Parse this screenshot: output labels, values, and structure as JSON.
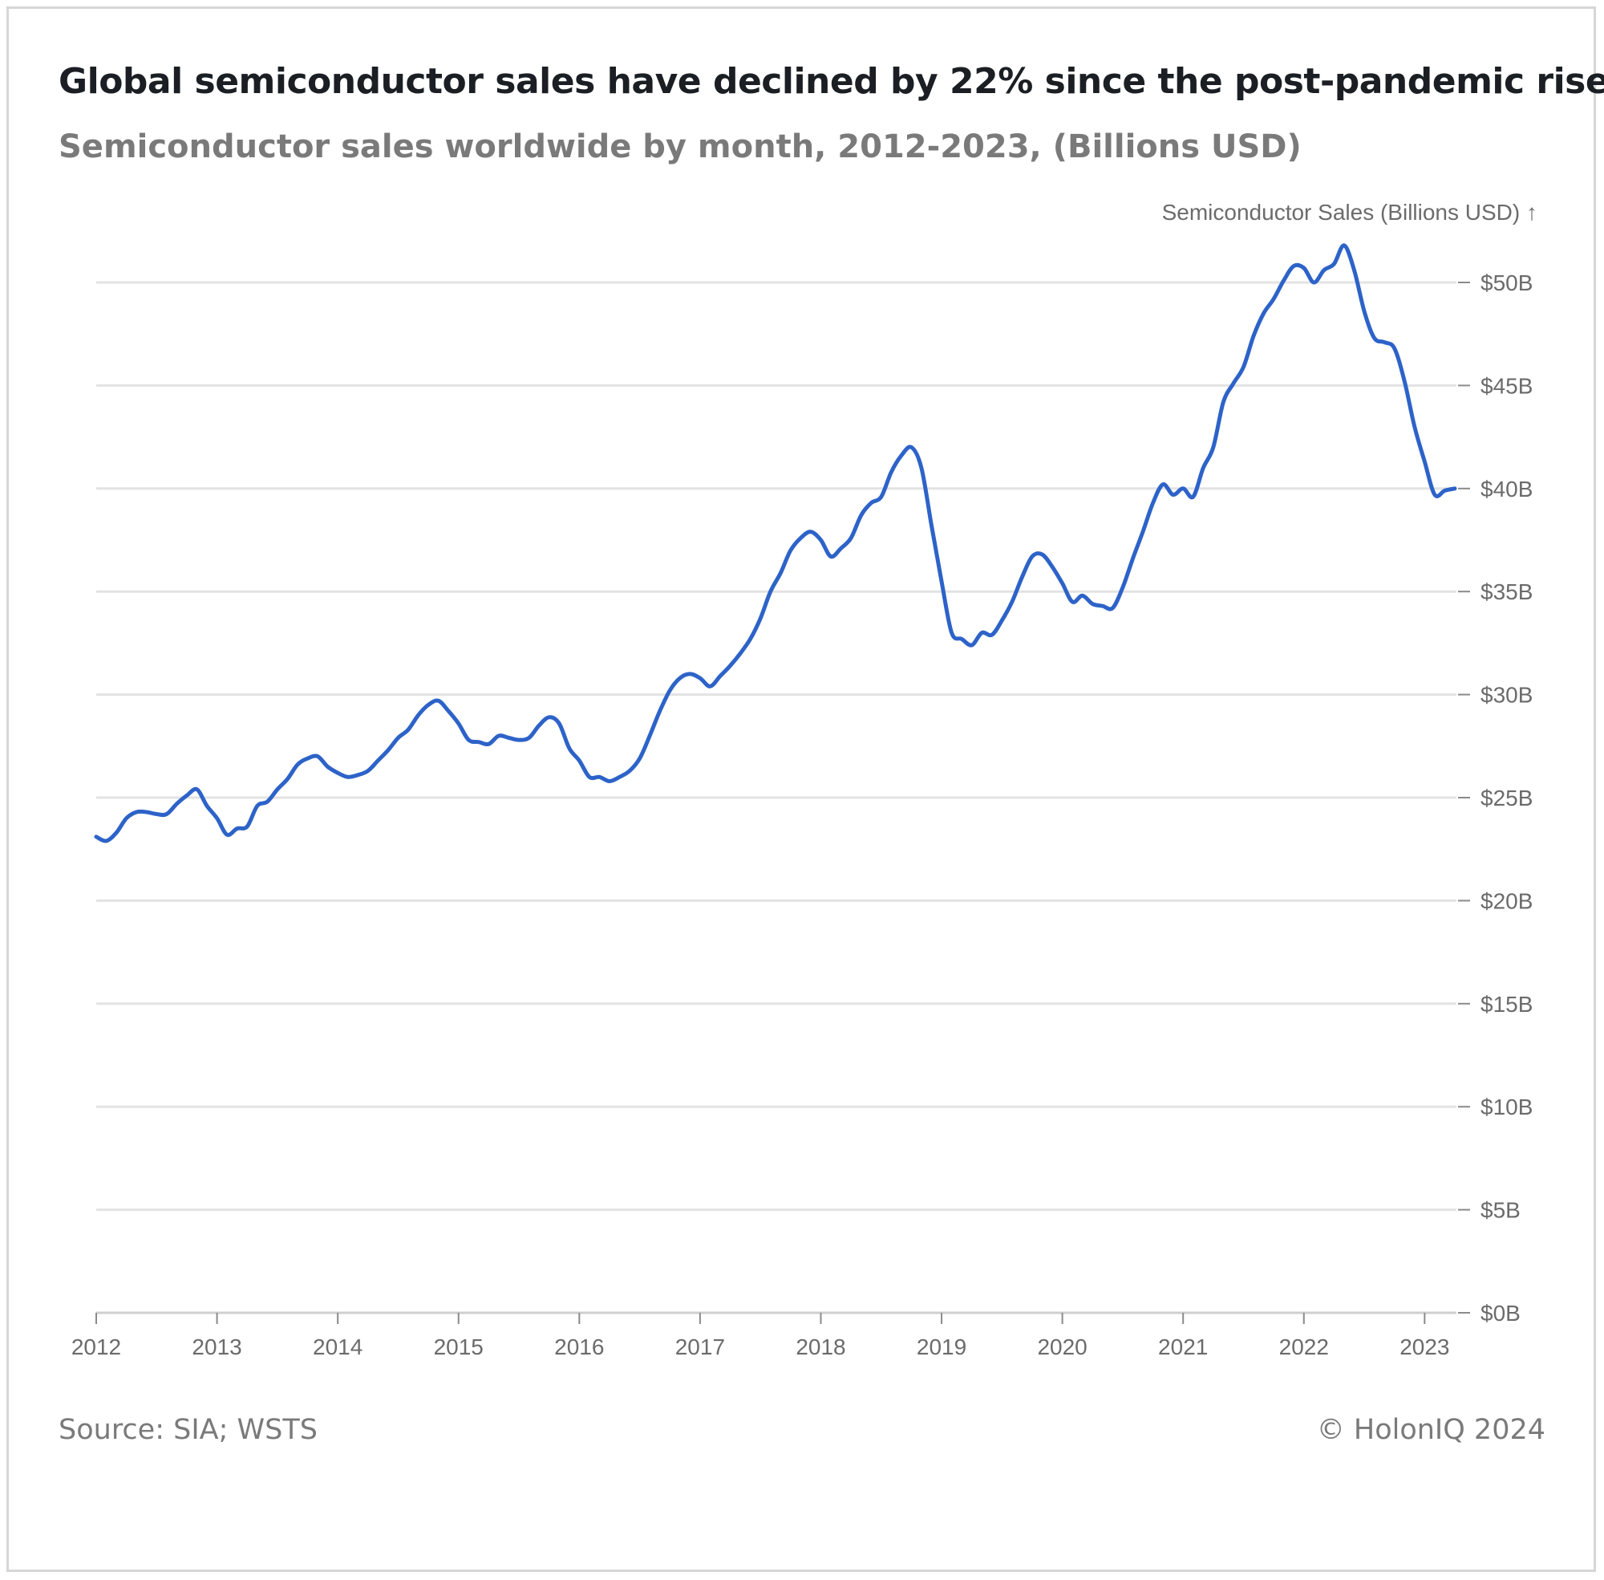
{
  "title": "Global semiconductor sales have declined by 22% since the post-pandemic rise",
  "subtitle": "Semiconductor sales worldwide by month, 2012-2023, (Billions USD)",
  "source": "Source: SIA; WSTS",
  "copyright": "© HolonIQ 2024",
  "colors": {
    "line": "#2d63c8",
    "grid": "#e3e3e3",
    "axis_text": "#6b6b6b"
  },
  "chart_data": {
    "type": "line",
    "title": "Global semiconductor sales have declined by 22% since the post-pandemic rise",
    "subtitle": "Semiconductor sales worldwide by month, 2012-2023, (Billions USD)",
    "ylabel": "Semiconductor Sales (Billions USD) ↑",
    "xlabel": "",
    "ylim": [
      0,
      50
    ],
    "yaxis_position": "right",
    "grid": true,
    "y_ticks": [
      {
        "value": 0,
        "label": "$0B"
      },
      {
        "value": 5,
        "label": "$5B"
      },
      {
        "value": 10,
        "label": "$10B"
      },
      {
        "value": 15,
        "label": "$15B"
      },
      {
        "value": 20,
        "label": "$20B"
      },
      {
        "value": 25,
        "label": "$25B"
      },
      {
        "value": 30,
        "label": "$30B"
      },
      {
        "value": 35,
        "label": "$35B"
      },
      {
        "value": 40,
        "label": "$40B"
      },
      {
        "value": 45,
        "label": "$45B"
      },
      {
        "value": 50,
        "label": "$50B"
      }
    ],
    "x_ticks": [
      "2012",
      "2013",
      "2014",
      "2015",
      "2016",
      "2017",
      "2018",
      "2019",
      "2020",
      "2021",
      "2022",
      "2023"
    ],
    "series": [
      {
        "values_by_month": [
          {
            "x": "2012-01",
            "y": 23.1
          },
          {
            "x": "2012-02",
            "y": 22.9
          },
          {
            "x": "2012-03",
            "y": 23.3
          },
          {
            "x": "2012-04",
            "y": 24.0
          },
          {
            "x": "2012-05",
            "y": 24.3
          },
          {
            "x": "2012-06",
            "y": 24.3
          },
          {
            "x": "2012-07",
            "y": 24.2
          },
          {
            "x": "2012-08",
            "y": 24.2
          },
          {
            "x": "2012-09",
            "y": 24.7
          },
          {
            "x": "2012-10",
            "y": 25.1
          },
          {
            "x": "2012-11",
            "y": 25.4
          },
          {
            "x": "2012-12",
            "y": 24.6
          },
          {
            "x": "2013-01",
            "y": 24.0
          },
          {
            "x": "2013-02",
            "y": 23.2
          },
          {
            "x": "2013-03",
            "y": 23.5
          },
          {
            "x": "2013-04",
            "y": 23.6
          },
          {
            "x": "2013-05",
            "y": 24.6
          },
          {
            "x": "2013-06",
            "y": 24.8
          },
          {
            "x": "2013-07",
            "y": 25.4
          },
          {
            "x": "2013-08",
            "y": 25.9
          },
          {
            "x": "2013-09",
            "y": 26.6
          },
          {
            "x": "2013-10",
            "y": 26.9
          },
          {
            "x": "2013-11",
            "y": 27.0
          },
          {
            "x": "2013-12",
            "y": 26.5
          },
          {
            "x": "2014-01",
            "y": 26.2
          },
          {
            "x": "2014-02",
            "y": 26.0
          },
          {
            "x": "2014-03",
            "y": 26.1
          },
          {
            "x": "2014-04",
            "y": 26.3
          },
          {
            "x": "2014-05",
            "y": 26.8
          },
          {
            "x": "2014-06",
            "y": 27.3
          },
          {
            "x": "2014-07",
            "y": 27.9
          },
          {
            "x": "2014-08",
            "y": 28.3
          },
          {
            "x": "2014-09",
            "y": 29.0
          },
          {
            "x": "2014-10",
            "y": 29.5
          },
          {
            "x": "2014-11",
            "y": 29.7
          },
          {
            "x": "2014-12",
            "y": 29.2
          },
          {
            "x": "2015-01",
            "y": 28.6
          },
          {
            "x": "2015-02",
            "y": 27.8
          },
          {
            "x": "2015-03",
            "y": 27.7
          },
          {
            "x": "2015-04",
            "y": 27.6
          },
          {
            "x": "2015-05",
            "y": 28.0
          },
          {
            "x": "2015-06",
            "y": 27.9
          },
          {
            "x": "2015-07",
            "y": 27.8
          },
          {
            "x": "2015-08",
            "y": 27.9
          },
          {
            "x": "2015-09",
            "y": 28.5
          },
          {
            "x": "2015-10",
            "y": 28.9
          },
          {
            "x": "2015-11",
            "y": 28.6
          },
          {
            "x": "2015-12",
            "y": 27.4
          },
          {
            "x": "2016-01",
            "y": 26.8
          },
          {
            "x": "2016-02",
            "y": 26.0
          },
          {
            "x": "2016-03",
            "y": 26.0
          },
          {
            "x": "2016-04",
            "y": 25.8
          },
          {
            "x": "2016-05",
            "y": 26.0
          },
          {
            "x": "2016-06",
            "y": 26.3
          },
          {
            "x": "2016-07",
            "y": 26.9
          },
          {
            "x": "2016-08",
            "y": 28.0
          },
          {
            "x": "2016-09",
            "y": 29.2
          },
          {
            "x": "2016-10",
            "y": 30.2
          },
          {
            "x": "2016-11",
            "y": 30.8
          },
          {
            "x": "2016-12",
            "y": 31.0
          },
          {
            "x": "2017-01",
            "y": 30.8
          },
          {
            "x": "2017-02",
            "y": 30.4
          },
          {
            "x": "2017-03",
            "y": 30.9
          },
          {
            "x": "2017-04",
            "y": 31.4
          },
          {
            "x": "2017-05",
            "y": 32.0
          },
          {
            "x": "2017-06",
            "y": 32.7
          },
          {
            "x": "2017-07",
            "y": 33.7
          },
          {
            "x": "2017-08",
            "y": 35.0
          },
          {
            "x": "2017-09",
            "y": 35.9
          },
          {
            "x": "2017-10",
            "y": 37.0
          },
          {
            "x": "2017-11",
            "y": 37.6
          },
          {
            "x": "2017-12",
            "y": 37.9
          },
          {
            "x": "2018-01",
            "y": 37.5
          },
          {
            "x": "2018-02",
            "y": 36.7
          },
          {
            "x": "2018-03",
            "y": 37.1
          },
          {
            "x": "2018-04",
            "y": 37.6
          },
          {
            "x": "2018-05",
            "y": 38.7
          },
          {
            "x": "2018-06",
            "y": 39.3
          },
          {
            "x": "2018-07",
            "y": 39.6
          },
          {
            "x": "2018-08",
            "y": 40.8
          },
          {
            "x": "2018-09",
            "y": 41.6
          },
          {
            "x": "2018-10",
            "y": 42.0
          },
          {
            "x": "2018-11",
            "y": 41.0
          },
          {
            "x": "2018-12",
            "y": 38.2
          },
          {
            "x": "2019-01",
            "y": 35.5
          },
          {
            "x": "2019-02",
            "y": 33.0
          },
          {
            "x": "2019-03",
            "y": 32.7
          },
          {
            "x": "2019-04",
            "y": 32.4
          },
          {
            "x": "2019-05",
            "y": 33.0
          },
          {
            "x": "2019-06",
            "y": 32.9
          },
          {
            "x": "2019-07",
            "y": 33.6
          },
          {
            "x": "2019-08",
            "y": 34.5
          },
          {
            "x": "2019-09",
            "y": 35.7
          },
          {
            "x": "2019-10",
            "y": 36.7
          },
          {
            "x": "2019-11",
            "y": 36.8
          },
          {
            "x": "2019-12",
            "y": 36.2
          },
          {
            "x": "2020-01",
            "y": 35.4
          },
          {
            "x": "2020-02",
            "y": 34.5
          },
          {
            "x": "2020-03",
            "y": 34.8
          },
          {
            "x": "2020-04",
            "y": 34.4
          },
          {
            "x": "2020-05",
            "y": 34.3
          },
          {
            "x": "2020-06",
            "y": 34.2
          },
          {
            "x": "2020-07",
            "y": 35.2
          },
          {
            "x": "2020-08",
            "y": 36.6
          },
          {
            "x": "2020-09",
            "y": 37.9
          },
          {
            "x": "2020-10",
            "y": 39.3
          },
          {
            "x": "2020-11",
            "y": 40.2
          },
          {
            "x": "2020-12",
            "y": 39.7
          },
          {
            "x": "2021-01",
            "y": 40.0
          },
          {
            "x": "2021-02",
            "y": 39.6
          },
          {
            "x": "2021-03",
            "y": 41.0
          },
          {
            "x": "2021-04",
            "y": 42.0
          },
          {
            "x": "2021-05",
            "y": 44.2
          },
          {
            "x": "2021-06",
            "y": 45.1
          },
          {
            "x": "2021-07",
            "y": 45.9
          },
          {
            "x": "2021-08",
            "y": 47.4
          },
          {
            "x": "2021-09",
            "y": 48.5
          },
          {
            "x": "2021-10",
            "y": 49.2
          },
          {
            "x": "2021-11",
            "y": 50.1
          },
          {
            "x": "2021-12",
            "y": 50.8
          },
          {
            "x": "2022-01",
            "y": 50.7
          },
          {
            "x": "2022-02",
            "y": 50.0
          },
          {
            "x": "2022-03",
            "y": 50.6
          },
          {
            "x": "2022-04",
            "y": 50.9
          },
          {
            "x": "2022-05",
            "y": 51.8
          },
          {
            "x": "2022-06",
            "y": 50.6
          },
          {
            "x": "2022-07",
            "y": 48.6
          },
          {
            "x": "2022-08",
            "y": 47.3
          },
          {
            "x": "2022-09",
            "y": 47.1
          },
          {
            "x": "2022-10",
            "y": 46.8
          },
          {
            "x": "2022-11",
            "y": 45.2
          },
          {
            "x": "2022-12",
            "y": 43.0
          },
          {
            "x": "2023-01",
            "y": 41.3
          },
          {
            "x": "2023-02",
            "y": 39.7
          },
          {
            "x": "2023-03",
            "y": 39.9
          },
          {
            "x": "2023-04",
            "y": 40.0
          }
        ]
      }
    ]
  }
}
